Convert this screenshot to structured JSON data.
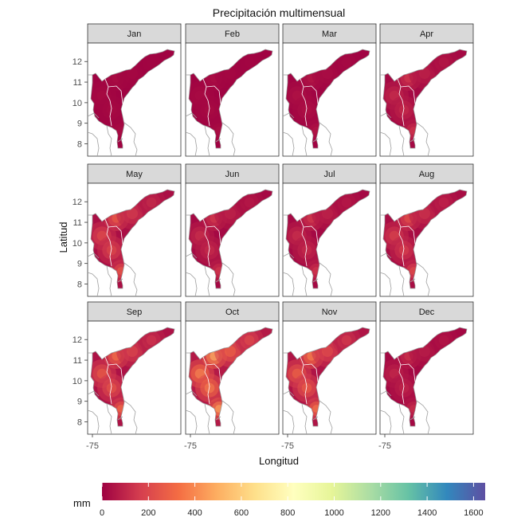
{
  "title": "Precipitación multimensual",
  "xlabel": "Longitud",
  "ylabel": "Latitud",
  "x_ticks": [
    "-75"
  ],
  "y_ticks": [
    "12",
    "11",
    "10",
    "9",
    "8"
  ],
  "legend": {
    "title": "mm",
    "ticks": [
      "0",
      "200",
      "400",
      "600",
      "800",
      "1000",
      "1200",
      "1400",
      "1600"
    ],
    "range": [
      0,
      1650
    ],
    "palette": [
      "#9E0142",
      "#D53E4F",
      "#F46D43",
      "#FDAE61",
      "#FEE08B",
      "#FFFFBF",
      "#E6F598",
      "#ABDDA4",
      "#66C2A5",
      "#3288BD",
      "#5E4FA2"
    ]
  },
  "chart_data": {
    "type": "heatmap",
    "facets": [
      "Jan",
      "Feb",
      "Mar",
      "Apr",
      "May",
      "Jun",
      "Jul",
      "Aug",
      "Sep",
      "Oct",
      "Nov",
      "Dec"
    ],
    "ylim": [
      7.4,
      12.9
    ],
    "grid": false,
    "legend_placement": "bottom",
    "precip_max_mm": [
      40,
      45,
      70,
      170,
      310,
      180,
      180,
      260,
      380,
      560,
      420,
      150
    ]
  }
}
